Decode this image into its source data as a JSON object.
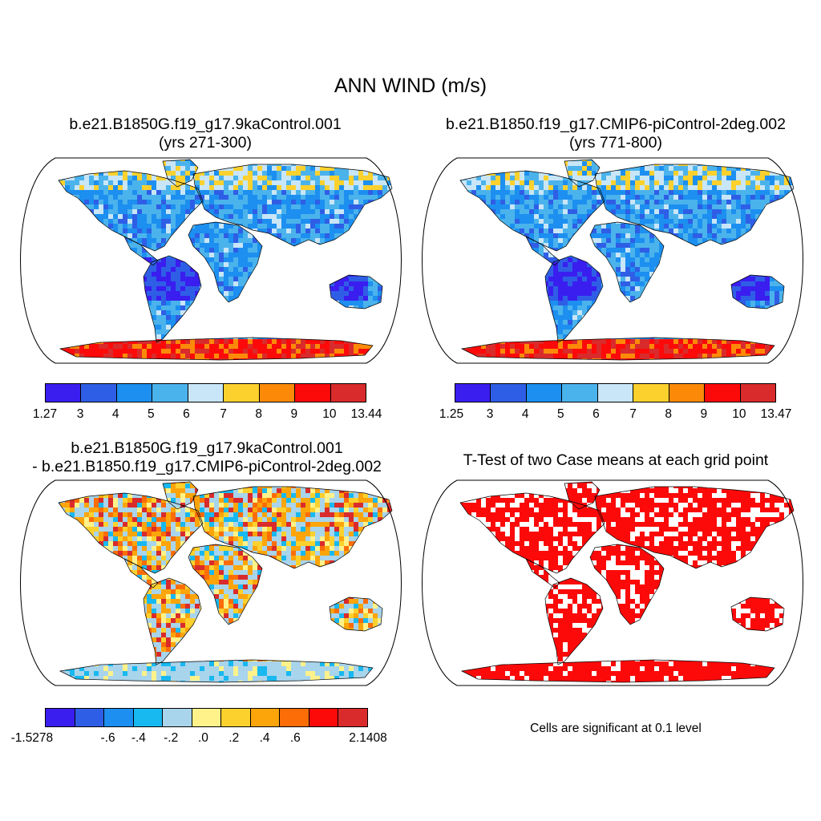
{
  "figure": {
    "title": "ANN WIND (m/s)"
  },
  "panels": [
    {
      "id": "case1",
      "title_line1": "b.e21.B1850G.f19_g17.9kaControl.001",
      "title_line2": "(yrs 271-300)",
      "colorbar": {
        "colors": [
          "#3a1ef0",
          "#2f5ee6",
          "#1c8ff0",
          "#4bb3ec",
          "#c8e6f7",
          "#fcd12e",
          "#fc8a08",
          "#fc0a0a",
          "#d92b2b"
        ],
        "labels": [
          "1.27",
          "3",
          "4",
          "5",
          "6",
          "7",
          "8",
          "9",
          "10",
          "13.44"
        ]
      },
      "field_palette": [
        "#3a1ef0",
        "#2f5ee6",
        "#1c8ff0",
        "#4bb3ec",
        "#c8e6f7",
        "#fcd12e",
        "#fc8a08",
        "#fc0a0a",
        "#d92b2b"
      ]
    },
    {
      "id": "case2",
      "title_line1": "b.e21.B1850.f19_g17.CMIP6-piControl-2deg.002",
      "title_line2": "(yrs 771-800)",
      "colorbar": {
        "colors": [
          "#3a1ef0",
          "#2f5ee6",
          "#1c8ff0",
          "#4bb3ec",
          "#c8e6f7",
          "#fcd12e",
          "#fc8a08",
          "#fc0a0a",
          "#d92b2b"
        ],
        "labels": [
          "1.25",
          "3",
          "4",
          "5",
          "6",
          "7",
          "8",
          "9",
          "10",
          "13.47"
        ]
      },
      "field_palette": [
        "#3a1ef0",
        "#2f5ee6",
        "#1c8ff0",
        "#4bb3ec",
        "#c8e6f7",
        "#fcd12e",
        "#fc8a08",
        "#fc0a0a",
        "#d92b2b"
      ]
    },
    {
      "id": "diff",
      "title_line1": "b.e21.B1850G.f19_g17.9kaControl.001",
      "title_line2": "- b.e21.B1850.f19_g17.CMIP6-piControl-2deg.002",
      "colorbar": {
        "colors": [
          "#3a1ef0",
          "#2f5ee6",
          "#1c8ff0",
          "#18b8f0",
          "#a8d4ec",
          "#fff28a",
          "#fcd12e",
          "#fca50a",
          "#fc6d08",
          "#fc0a0a",
          "#d92b2b"
        ],
        "labels": [
          "-1.5278",
          "-.6",
          "-.4",
          "-.2",
          ".0",
          ".2",
          ".4",
          ".6",
          "2.1408"
        ]
      },
      "field_palette": [
        "#a8d4ec",
        "#a8d4ec",
        "#fff28a",
        "#fcd12e",
        "#fca50a",
        "#a8d4ec",
        "#fca50a",
        "#fc6d08",
        "#d92b2b",
        "#18b8f0"
      ]
    },
    {
      "id": "ttest",
      "title_line1": "T-Test of two Case means at each grid point",
      "note": "Cells are significant at 0.1 level",
      "field_palette": [
        "#fc0a0a",
        "#fc0a0a",
        "#fc0a0a",
        "#ffffff",
        "#fc0a0a"
      ]
    }
  ]
}
